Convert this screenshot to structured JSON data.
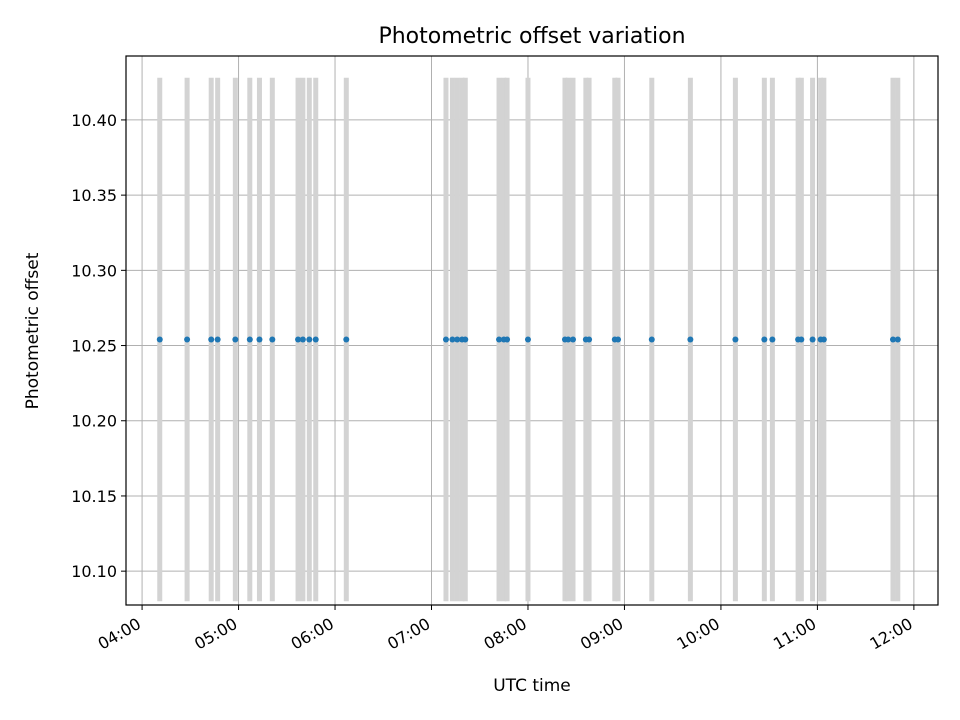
{
  "chart_data": {
    "type": "scatter",
    "title": "Photometric offset variation",
    "xlabel": "UTC time",
    "ylabel": "Photometric offset",
    "x_is_time": true,
    "xlim": [
      "03:50",
      "12:15"
    ],
    "ylim": [
      10.0775,
      10.4425
    ],
    "x_ticks": [
      "04:00",
      "05:00",
      "06:00",
      "07:00",
      "08:00",
      "09:00",
      "10:00",
      "11:00",
      "12:00"
    ],
    "y_ticks": [
      "10.10",
      "10.15",
      "10.20",
      "10.25",
      "10.30",
      "10.35",
      "10.40"
    ],
    "grid": true,
    "point_color": "#1f77b4",
    "errorbar_color": "#d3d3d3",
    "error_range": [
      10.08,
      10.428
    ],
    "series": [
      {
        "x": [
          "04:11",
          "04:28",
          "04:43",
          "04:47",
          "04:58",
          "05:07",
          "05:13",
          "05:21",
          "05:37",
          "05:40",
          "05:44",
          "05:48",
          "06:07",
          "07:09",
          "07:13",
          "07:16",
          "07:19",
          "07:21",
          "07:42",
          "07:45",
          "07:47",
          "08:00",
          "08:23",
          "08:25",
          "08:28",
          "08:36",
          "08:38",
          "08:54",
          "08:56",
          "09:17",
          "09:41",
          "10:09",
          "10:27",
          "10:32",
          "10:48",
          "10:50",
          "10:57",
          "11:02",
          "11:04",
          "11:47",
          "11:50"
        ],
        "y": [
          10.254,
          10.254,
          10.254,
          10.254,
          10.254,
          10.254,
          10.254,
          10.254,
          10.254,
          10.254,
          10.254,
          10.254,
          10.254,
          10.254,
          10.254,
          10.254,
          10.254,
          10.254,
          10.254,
          10.254,
          10.254,
          10.254,
          10.254,
          10.254,
          10.254,
          10.254,
          10.254,
          10.254,
          10.254,
          10.254,
          10.254,
          10.254,
          10.254,
          10.254,
          10.254,
          10.254,
          10.254,
          10.254,
          10.254,
          10.254,
          10.254
        ]
      }
    ]
  }
}
